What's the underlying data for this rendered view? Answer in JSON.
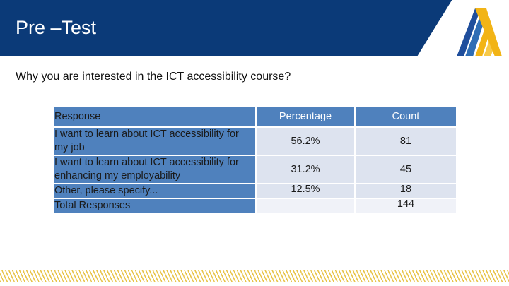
{
  "slide": {
    "title": "Pre –Test",
    "question": "Why you are interested in the ICT accessibility course?"
  },
  "table": {
    "headers": {
      "response": "Response",
      "percentage": "Percentage",
      "count": "Count"
    },
    "rows": [
      {
        "response": "I want to learn about ICT accessibility for my job",
        "percentage": "56.2%",
        "count": "81"
      },
      {
        "response": "I want to learn about ICT accessibility for enhancing my employability",
        "percentage": "31.2%",
        "count": "45"
      },
      {
        "response": "Other, please specify...",
        "percentage": "12.5%",
        "count": "18"
      },
      {
        "response": "Total Responses",
        "percentage": "",
        "count": "144"
      }
    ]
  },
  "colors": {
    "header_bar": "#0b3a78",
    "table_header": "#4f81bd",
    "table_cell": "#dde3ef",
    "logo_blue": "#1f4e9c",
    "logo_gold": "#f2b416",
    "footer_hatch": "#e8c44a"
  },
  "icons": {
    "logo": "triangular-mountain-logo"
  }
}
